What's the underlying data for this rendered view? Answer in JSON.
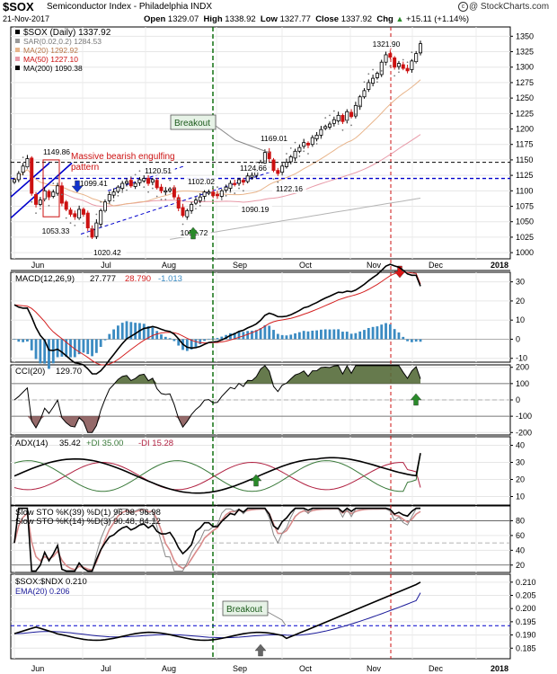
{
  "header": {
    "ticker": "$SOX",
    "index_name": "Semiconductor Index - Philadelphia INDX",
    "date": "21-Nov-2017",
    "open_label": "Open",
    "open": "1329.07",
    "high_label": "High",
    "high": "1338.92",
    "low_label": "Low",
    "low": "1327.77",
    "close_label": "Close",
    "close": "1337.92",
    "chg_label": "Chg",
    "chg": "+15.11 (+1.14%)",
    "chg_icon": "up-triangle-icon",
    "logo": "@ StockCharts.com"
  },
  "colors": {
    "up": "#000000",
    "down": "#cc1111",
    "ma20": "#e8b48a",
    "ma50": "#e89aa8",
    "ma200": "#b4b4b4",
    "macd": "#000000",
    "signal": "#d42020",
    "hist": "#3b8bc2",
    "cci": "#556b3a",
    "pdi": "#3a7a3a",
    "mdi": "#b02040",
    "sto_d": "#d88a8a",
    "blue_line": "#0000cc",
    "green_dash": "#006600",
    "red_dash": "#cc1111",
    "arrow_green": "#2a8a2a",
    "arrow_red": "#dd1111",
    "arrow_blue": "#1133cc",
    "arrow_gray": "#666666"
  },
  "chart_data": [
    {
      "type": "candlestick",
      "name": "price",
      "legend": [
        "$SOX (Daily) 1337.92",
        "SAR(0.02,0.2) 1284.53",
        "MA(20) 1292.92",
        "MA(50) 1227.10",
        "MA(200) 1090.38"
      ],
      "ylim": [
        990,
        1365
      ],
      "yticks": [
        1000,
        1025,
        1050,
        1075,
        1100,
        1125,
        1150,
        1175,
        1200,
        1225,
        1250,
        1275,
        1300,
        1325,
        1350
      ],
      "x_months": [
        "Jun",
        "Jul",
        "Aug",
        "Sep",
        "Oct",
        "Nov",
        "Dec",
        "2018"
      ],
      "closes": [
        1118,
        1128,
        1140,
        1152,
        1096,
        1078,
        1085,
        1100,
        1090,
        1098,
        1108,
        1080,
        1070,
        1062,
        1058,
        1070,
        1062,
        1040,
        1025,
        1048,
        1068,
        1082,
        1094,
        1098,
        1106,
        1112,
        1115,
        1108,
        1112,
        1118,
        1120,
        1112,
        1118,
        1105,
        1100,
        1100,
        1103,
        1090,
        1072,
        1060,
        1068,
        1078,
        1085,
        1090,
        1098,
        1098,
        1092,
        1092,
        1100,
        1106,
        1112,
        1110,
        1118,
        1114,
        1124,
        1125,
        1132,
        1146,
        1162,
        1152,
        1133,
        1128,
        1140,
        1146,
        1155,
        1164,
        1170,
        1178,
        1174,
        1186,
        1190,
        1199,
        1204,
        1208,
        1215,
        1222,
        1212,
        1228,
        1220,
        1238,
        1252,
        1262,
        1275,
        1282,
        1290,
        1308,
        1320,
        1316,
        1300,
        1306,
        1298,
        1294,
        1310,
        1322,
        1337.92
      ],
      "levels": {
        "dashed_black": 1146,
        "dashed_blue": 1120
      },
      "price_labels": [
        "1149.86",
        "1099.41",
        "1053.33",
        "1020.42",
        "1120.51",
        "1102.02",
        "1052.72",
        "1124.66",
        "1169.01",
        "1122.16",
        "1090.19",
        "1321.90"
      ],
      "annotations": [
        "Massive bearish engulfing pattern",
        "Breakout"
      ],
      "vlines_months": [
        "Aug",
        "Nov"
      ]
    },
    {
      "type": "line",
      "name": "macd",
      "legend_label": "MACD(12,26,9)",
      "legend_values": [
        "27.777",
        "28.790",
        "-1.013"
      ],
      "ylim": [
        -12,
        35
      ],
      "yticks": [
        -10,
        0,
        10,
        20,
        30
      ]
    },
    {
      "type": "line",
      "name": "cci",
      "legend_label": "CCI(20)",
      "legend_values": [
        "129.70"
      ],
      "ylim": [
        -215,
        215
      ],
      "yticks": [
        -200,
        -100,
        0,
        100,
        200
      ]
    },
    {
      "type": "line",
      "name": "adx",
      "legend_label": "ADX(14)",
      "legend_values": [
        "35.42",
        "+DI 35.00",
        "-DI 15.28"
      ],
      "ylim": [
        5,
        45
      ],
      "yticks": [
        10,
        20,
        30,
        40
      ]
    },
    {
      "type": "line",
      "name": "stochastics",
      "legend": [
        "Slow STO %K(39) %D(1) 96.98, 96.98",
        "Slow STO %K(14) %D(3) 90.48, 84.12"
      ],
      "ylim": [
        10,
        100
      ],
      "yticks": [
        20,
        40,
        60,
        80
      ]
    },
    {
      "type": "line",
      "name": "ratio",
      "legend": [
        "$SOX:$NDX 0.210",
        "EMA(20) 0.206"
      ],
      "ylim": [
        0.181,
        0.213
      ],
      "yticks": [
        0.185,
        0.19,
        0.195,
        0.2,
        0.205,
        0.21
      ],
      "level_dashed_blue": 0.1935,
      "annotations": [
        "Breakout"
      ]
    }
  ]
}
